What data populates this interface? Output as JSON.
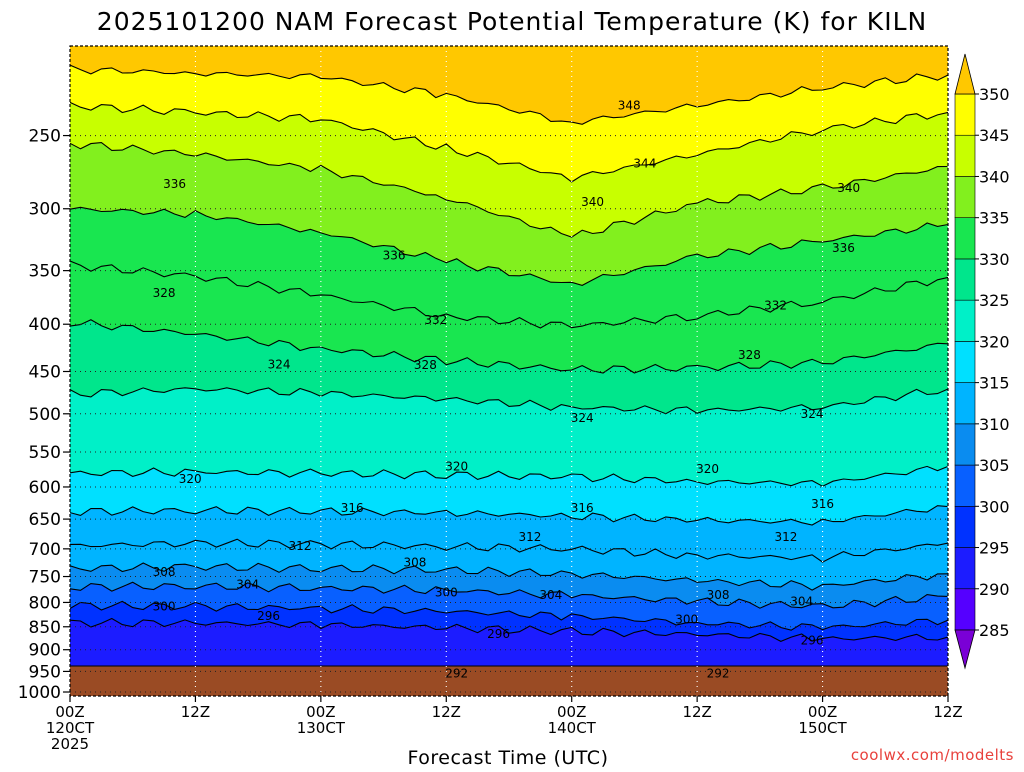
{
  "chart_data": {
    "type": "contour",
    "title": "2025101200 NAM Forecast Potential Temperature (K) for KILN",
    "xlabel": "Forecast Time (UTC)",
    "ylabel": "",
    "credit": "coolwx.com/modelts",
    "units": "K",
    "x_ticks": [
      {
        "hour": 0,
        "label1": "00Z",
        "label2": "120CT",
        "label3": "2025"
      },
      {
        "hour": 12,
        "label1": "12Z",
        "label2": "",
        "label3": ""
      },
      {
        "hour": 24,
        "label1": "00Z",
        "label2": "130CT",
        "label3": ""
      },
      {
        "hour": 36,
        "label1": "12Z",
        "label2": "",
        "label3": ""
      },
      {
        "hour": 48,
        "label1": "00Z",
        "label2": "140CT",
        "label3": ""
      },
      {
        "hour": 60,
        "label1": "12Z",
        "label2": "",
        "label3": ""
      },
      {
        "hour": 72,
        "label1": "00Z",
        "label2": "150CT",
        "label3": ""
      },
      {
        "hour": 84,
        "label1": "12Z",
        "label2": "",
        "label3": ""
      }
    ],
    "xlim": [
      0,
      84
    ],
    "y_ticks": [
      "250",
      "300",
      "350",
      "400",
      "450",
      "500",
      "550",
      "600",
      "650",
      "700",
      "750",
      "800",
      "850",
      "900",
      "950",
      "1000"
    ],
    "ylim": [
      1010,
      200
    ],
    "y_scale": "log",
    "colorbar": {
      "levels": [
        285,
        290,
        295,
        300,
        305,
        310,
        315,
        320,
        325,
        330,
        335,
        340,
        345,
        350
      ],
      "labels": [
        "285",
        "290",
        "295",
        "300",
        "305",
        "310",
        "315",
        "320",
        "325",
        "330",
        "335",
        "340",
        "345",
        "350"
      ],
      "colors": [
        "#7a00d6",
        "#5500ff",
        "#1c1cff",
        "#0032ff",
        "#0860ff",
        "#0a8cf0",
        "#00b4ff",
        "#00e0ff",
        "#00f0c8",
        "#00e68c",
        "#19e650",
        "#82f01e",
        "#c8ff00",
        "#ffff00",
        "#ffe100",
        "#ffc800"
      ]
    },
    "surface_color": "#9a4b24",
    "contours": [
      {
        "value": 292,
        "p": [
          978,
          975,
          972,
          970,
          974,
          972,
          968,
          970
        ]
      },
      {
        "value": 296,
        "p": [
          842,
          842,
          846,
          852,
          860,
          866,
          876,
          872
        ]
      },
      {
        "value": 300,
        "p": [
          806,
          808,
          812,
          818,
          828,
          842,
          852,
          836
        ]
      },
      {
        "value": 304,
        "p": [
          770,
          768,
          772,
          776,
          786,
          798,
          808,
          788
        ]
      },
      {
        "value": 308,
        "p": [
          735,
          732,
          735,
          738,
          745,
          758,
          768,
          745
        ]
      },
      {
        "value": 312,
        "p": [
          695,
          690,
          692,
          696,
          700,
          712,
          716,
          690
        ]
      },
      {
        "value": 316,
        "p": [
          638,
          636,
          638,
          640,
          645,
          652,
          655,
          630
        ]
      },
      {
        "value": 320,
        "p": [
          580,
          578,
          580,
          582,
          585,
          592,
          595,
          570
        ]
      },
      {
        "value": 324,
        "p": [
          476,
          470,
          475,
          482,
          492,
          496,
          492,
          470
        ]
      },
      {
        "value": 328,
        "p": [
          398,
          410,
          425,
          438,
          448,
          446,
          440,
          420
        ]
      },
      {
        "value": 332,
        "p": [
          345,
          355,
          372,
          392,
          402,
          392,
          378,
          356
        ]
      },
      {
        "value": 336,
        "p": [
          300,
          304,
          318,
          342,
          362,
          338,
          325,
          312
        ]
      },
      {
        "value": 340,
        "p": [
          255,
          262,
          272,
          292,
          322,
          296,
          285,
          270
        ]
      },
      {
        "value": 344,
        "p": [
          232,
          236,
          240,
          258,
          278,
          262,
          246,
          236
        ]
      },
      {
        "value": 348,
        "p": [
          212,
          214,
          216,
          226,
          242,
          232,
          222,
          215
        ]
      }
    ],
    "contour_labels": [
      {
        "text": "348",
        "hour": 53.5,
        "p": 232
      },
      {
        "text": "344",
        "hour": 55,
        "p": 268
      },
      {
        "text": "340",
        "hour": 50,
        "p": 295
      },
      {
        "text": "340",
        "hour": 74.5,
        "p": 285
      },
      {
        "text": "336",
        "hour": 10,
        "p": 282
      },
      {
        "text": "336",
        "hour": 31,
        "p": 337
      },
      {
        "text": "336",
        "hour": 74,
        "p": 331
      },
      {
        "text": "332",
        "hour": 35,
        "p": 396
      },
      {
        "text": "332",
        "hour": 67.5,
        "p": 382
      },
      {
        "text": "328",
        "hour": 9,
        "p": 370
      },
      {
        "text": "328",
        "hour": 34,
        "p": 443
      },
      {
        "text": "328",
        "hour": 65,
        "p": 432
      },
      {
        "text": "324",
        "hour": 20,
        "p": 442
      },
      {
        "text": "324",
        "hour": 49,
        "p": 505
      },
      {
        "text": "324",
        "hour": 71,
        "p": 500
      },
      {
        "text": "320",
        "hour": 11.5,
        "p": 588
      },
      {
        "text": "320",
        "hour": 37,
        "p": 570
      },
      {
        "text": "320",
        "hour": 61,
        "p": 574
      },
      {
        "text": "316",
        "hour": 27,
        "p": 632
      },
      {
        "text": "316",
        "hour": 49,
        "p": 632
      },
      {
        "text": "316",
        "hour": 72,
        "p": 626
      },
      {
        "text": "312",
        "hour": 22,
        "p": 695
      },
      {
        "text": "312",
        "hour": 44,
        "p": 680
      },
      {
        "text": "312",
        "hour": 68.5,
        "p": 680
      },
      {
        "text": "308",
        "hour": 9,
        "p": 742
      },
      {
        "text": "308",
        "hour": 33,
        "p": 724
      },
      {
        "text": "308",
        "hour": 62,
        "p": 785
      },
      {
        "text": "304",
        "hour": 17,
        "p": 765
      },
      {
        "text": "304",
        "hour": 46,
        "p": 785
      },
      {
        "text": "304",
        "hour": 70,
        "p": 798
      },
      {
        "text": "300",
        "hour": 9,
        "p": 808
      },
      {
        "text": "300",
        "hour": 36,
        "p": 780
      },
      {
        "text": "300",
        "hour": 59,
        "p": 835
      },
      {
        "text": "296",
        "hour": 19,
        "p": 828
      },
      {
        "text": "296",
        "hour": 41,
        "p": 865
      },
      {
        "text": "296",
        "hour": 71,
        "p": 880
      },
      {
        "text": "292",
        "hour": 37,
        "p": 955
      },
      {
        "text": "292",
        "hour": 62,
        "p": 955
      }
    ]
  }
}
